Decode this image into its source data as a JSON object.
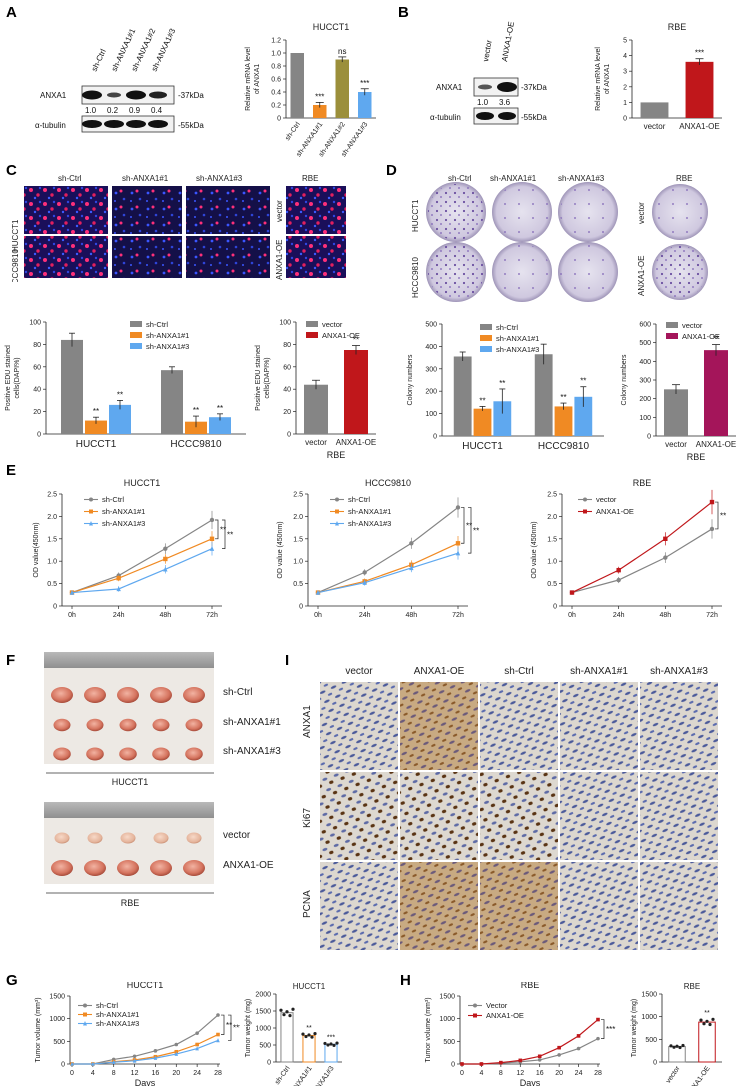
{
  "panels": {
    "A": "A",
    "B": "B",
    "C": "C",
    "D": "D",
    "E": "E",
    "F": "F",
    "G": "G",
    "H": "H",
    "I": "I"
  },
  "colors": {
    "gray": "#858585",
    "orange": "#f08a23",
    "blue": "#5fa8ef",
    "olive": "#9b8f3b",
    "red": "#c0171b",
    "magenta": "#a4155a",
    "darkgray": "#7c7c7c"
  },
  "panel_A": {
    "lanes": [
      "sh-Ctrl",
      "sh-ANXA1#1",
      "sh-ANXA1#2",
      "sh-ANXA1#3"
    ],
    "rows": [
      "ANXA1",
      "α-tubulin"
    ],
    "kda": [
      "-37kDa",
      "-55kDa"
    ],
    "quant": [
      "1.0",
      "0.2",
      "0.9",
      "0.4"
    ]
  },
  "panel_B": {
    "lanes": [
      "vector",
      "ANXA1-OE"
    ],
    "rows": [
      "ANXA1",
      "α-tubulin"
    ],
    "kda": [
      "-37kDa",
      "-55kDa"
    ],
    "quant": [
      "1.0",
      "3.6"
    ]
  },
  "panel_C": {
    "cols": [
      "sh-Ctrl",
      "sh-ANXA1#1",
      "sh-ANXA1#3"
    ],
    "rows": [
      "HUCCT1",
      "HCCC9810"
    ],
    "rbe_title": "RBE",
    "rbe_rows": [
      "vector",
      "ANXA1-OE"
    ]
  },
  "panel_D": {
    "cols": [
      "sh-Ctrl",
      "sh-ANXA1#1",
      "sh-ANXA1#3"
    ],
    "rows": [
      "HUCCT1",
      "HCCC9810"
    ],
    "rbe_title": "RBE",
    "rbe_rows": [
      "vector",
      "ANXA1-OE"
    ]
  },
  "panel_F": {
    "top_rows": [
      "sh-Ctrl",
      "sh-ANXA1#1",
      "sh-ANXA1#3"
    ],
    "top_caption": "HUCCT1",
    "bottom_rows": [
      "vector",
      "ANXA1-OE"
    ],
    "bottom_caption": "RBE"
  },
  "panel_I": {
    "cols": [
      "vector",
      "ANXA1-OE",
      "sh-Ctrl",
      "sh-ANXA1#1",
      "sh-ANXA1#3"
    ],
    "rows": [
      "ANXA1",
      "Ki67",
      "PCNA"
    ]
  },
  "chart_data": [
    {
      "id": "A_bar",
      "type": "bar",
      "title": "HUCCT1",
      "ylabel": "Relative mRNA level of ANXA1",
      "ylim": [
        0,
        1.2
      ],
      "yticks": [
        0,
        0.2,
        0.4,
        0.6,
        0.8,
        1.0,
        1.2
      ],
      "categories": [
        "sh-Ctrl",
        "sh-ANXA1#1",
        "sh-ANXA1#2",
        "sh-ANXA1#3"
      ],
      "values": [
        1.0,
        0.2,
        0.9,
        0.4
      ],
      "errors": [
        0,
        0.04,
        0.04,
        0.05
      ],
      "colors": [
        "#858585",
        "#f08a23",
        "#9b8f3b",
        "#5fa8ef"
      ],
      "sig": [
        "",
        "***",
        "ns",
        "***"
      ]
    },
    {
      "id": "B_bar",
      "type": "bar",
      "title": "RBE",
      "ylabel": "Relative mRNA level of ANXA1",
      "ylim": [
        0,
        5
      ],
      "yticks": [
        0,
        1,
        2,
        3,
        4,
        5
      ],
      "categories": [
        "vector",
        "ANXA1-OE"
      ],
      "values": [
        1.0,
        3.6
      ],
      "errors": [
        0,
        0.2
      ],
      "colors": [
        "#858585",
        "#c0171b"
      ],
      "sig": [
        "",
        "***"
      ]
    },
    {
      "id": "C_bar1",
      "type": "bar",
      "ylabel": "Positive EDU stained cells(DAPI%)",
      "ylim": [
        0,
        100
      ],
      "yticks": [
        0,
        20,
        40,
        60,
        80,
        100
      ],
      "categories": [
        "HUCCT1",
        "HCCC9810"
      ],
      "series": [
        {
          "name": "sh-Ctrl",
          "values": [
            84,
            57
          ],
          "errors": [
            6,
            3
          ],
          "color": "#858585",
          "sig": [
            "",
            ""
          ]
        },
        {
          "name": "sh-ANXA1#1",
          "values": [
            12,
            11
          ],
          "errors": [
            3,
            5
          ],
          "color": "#f08a23",
          "sig": [
            "**",
            "**"
          ]
        },
        {
          "name": "sh-ANXA1#3",
          "values": [
            26,
            15
          ],
          "errors": [
            4,
            3
          ],
          "color": "#5fa8ef",
          "sig": [
            "**",
            "**"
          ]
        }
      ]
    },
    {
      "id": "C_bar2",
      "type": "bar",
      "ylabel": "Positive EDU stained cells(DAPI%)",
      "xlabel": "RBE",
      "ylim": [
        0,
        100
      ],
      "yticks": [
        0,
        20,
        40,
        60,
        80,
        100
      ],
      "categories": [
        "vector",
        "ANXA1-OE"
      ],
      "values": [
        44,
        75
      ],
      "errors": [
        4,
        4
      ],
      "colors": [
        "#858585",
        "#c0171b"
      ],
      "sig": [
        "",
        "**"
      ],
      "legend": [
        "vector",
        "ANXA1-OE"
      ]
    },
    {
      "id": "D_bar1",
      "type": "bar",
      "ylabel": "Colony numbers",
      "ylim": [
        0,
        500
      ],
      "yticks": [
        0,
        100,
        200,
        300,
        400,
        500
      ],
      "categories": [
        "HUCCT1",
        "HCCC9810"
      ],
      "series": [
        {
          "name": "sh-Ctrl",
          "values": [
            355,
            365
          ],
          "errors": [
            20,
            45
          ],
          "color": "#858585",
          "sig": [
            "",
            ""
          ]
        },
        {
          "name": "sh-ANXA1#1",
          "values": [
            122,
            132
          ],
          "errors": [
            10,
            15
          ],
          "color": "#f08a23",
          "sig": [
            "**",
            "**"
          ]
        },
        {
          "name": "sh-ANXA1#3",
          "values": [
            155,
            175
          ],
          "errors": [
            55,
            45
          ],
          "color": "#5fa8ef",
          "sig": [
            "**",
            "**"
          ]
        }
      ]
    },
    {
      "id": "D_bar2",
      "type": "bar",
      "ylabel": "Colony numbers",
      "xlabel": "RBE",
      "ylim": [
        0,
        600
      ],
      "yticks": [
        0,
        100,
        200,
        300,
        400,
        500,
        600
      ],
      "categories": [
        "vector",
        "ANXA1-OE"
      ],
      "values": [
        250,
        460
      ],
      "errors": [
        25,
        30
      ],
      "colors": [
        "#858585",
        "#a4155a"
      ],
      "sig": [
        "",
        "**"
      ],
      "legend": [
        "vector",
        "ANXA1-OE"
      ]
    },
    {
      "id": "E1",
      "type": "line",
      "title": "HUCCT1",
      "ylabel": "OD value(450nm)",
      "ylim": [
        0,
        2.5
      ],
      "yticks": [
        0,
        0.5,
        1.0,
        1.5,
        2.0,
        2.5
      ],
      "x": [
        "0h",
        "24h",
        "48h",
        "72h"
      ],
      "series": [
        {
          "name": "sh-Ctrl",
          "values": [
            0.3,
            0.68,
            1.28,
            1.92
          ],
          "color": "#858585",
          "marker": "circle"
        },
        {
          "name": "sh-ANXA1#1",
          "values": [
            0.3,
            0.62,
            1.05,
            1.5
          ],
          "color": "#f08a23",
          "marker": "square"
        },
        {
          "name": "sh-ANXA1#3",
          "values": [
            0.3,
            0.38,
            0.82,
            1.28
          ],
          "color": "#5fa8ef",
          "marker": "triangle"
        }
      ],
      "sig": [
        "**",
        "**"
      ]
    },
    {
      "id": "E2",
      "type": "line",
      "title": "HCCC9810",
      "ylabel": "OD value (450nm)",
      "ylim": [
        0,
        2.5
      ],
      "yticks": [
        0,
        0.5,
        1.0,
        1.5,
        2.0,
        2.5
      ],
      "x": [
        "0h",
        "24h",
        "48h",
        "72h"
      ],
      "series": [
        {
          "name": "sh-Ctrl",
          "values": [
            0.3,
            0.75,
            1.4,
            2.2
          ],
          "color": "#858585",
          "marker": "circle"
        },
        {
          "name": "sh-ANXA1#1",
          "values": [
            0.3,
            0.55,
            0.92,
            1.4
          ],
          "color": "#f08a23",
          "marker": "square"
        },
        {
          "name": "sh-ANXA1#3",
          "values": [
            0.3,
            0.52,
            0.85,
            1.18
          ],
          "color": "#5fa8ef",
          "marker": "triangle"
        }
      ],
      "sig": [
        "**",
        "**"
      ]
    },
    {
      "id": "E3",
      "type": "line",
      "title": "RBE",
      "ylabel": "OD value (450nm)",
      "ylim": [
        0,
        2.5
      ],
      "yticks": [
        0,
        0.5,
        1.0,
        1.5,
        2.0,
        2.5
      ],
      "x": [
        "0h",
        "24h",
        "48h",
        "72h"
      ],
      "series": [
        {
          "name": "vector",
          "values": [
            0.3,
            0.58,
            1.08,
            1.72
          ],
          "color": "#858585",
          "marker": "circle"
        },
        {
          "name": "ANXA1-OE",
          "values": [
            0.3,
            0.8,
            1.5,
            2.32
          ],
          "color": "#c0171b",
          "marker": "square"
        }
      ],
      "sig": [
        "**"
      ]
    },
    {
      "id": "G1",
      "type": "line",
      "title": "HUCCT1",
      "ylabel": "Tumor volume (mm³)",
      "xlabel": "Days",
      "ylim": [
        0,
        1500
      ],
      "yticks": [
        0,
        500,
        1000,
        1500
      ],
      "x": [
        0,
        4,
        8,
        12,
        16,
        20,
        24,
        28
      ],
      "series": [
        {
          "name": "sh-Ctrl",
          "values": [
            0,
            0,
            100,
            170,
            290,
            430,
            680,
            1080
          ],
          "color": "#858585",
          "marker": "circle"
        },
        {
          "name": "sh-ANXA1#1",
          "values": [
            0,
            0,
            50,
            90,
            160,
            270,
            430,
            650
          ],
          "color": "#f08a23",
          "marker": "square"
        },
        {
          "name": "sh-ANXA1#3",
          "values": [
            0,
            0,
            40,
            70,
            130,
            220,
            340,
            520
          ],
          "color": "#5fa8ef",
          "marker": "triangle"
        }
      ],
      "sig": [
        "**",
        "***"
      ]
    },
    {
      "id": "G2",
      "type": "scatter",
      "title": "HUCCT1",
      "ylabel": "Tumor weight (mg)",
      "ylim": [
        0,
        2000
      ],
      "yticks": [
        0,
        500,
        1000,
        1500,
        2000
      ],
      "categories": [
        "sh-Ctrl",
        "sh-ANXA1#1",
        "sh-ANXA1#3"
      ],
      "values": [
        1450,
        780,
        520
      ],
      "colors": [
        "#858585",
        "#f08a23",
        "#5fa8ef"
      ],
      "sig": [
        "",
        "**",
        "***"
      ]
    },
    {
      "id": "H1",
      "type": "line",
      "title": "RBE",
      "ylabel": "Tumor volume (mm³)",
      "xlabel": "Days",
      "ylim": [
        0,
        1500
      ],
      "yticks": [
        0,
        500,
        1000,
        1500
      ],
      "x": [
        0,
        4,
        8,
        12,
        16,
        20,
        24,
        28
      ],
      "series": [
        {
          "name": "Vector",
          "values": [
            0,
            0,
            20,
            50,
            90,
            200,
            340,
            560
          ],
          "color": "#858585",
          "marker": "circle"
        },
        {
          "name": "ANXA1-OE",
          "values": [
            0,
            0,
            30,
            80,
            170,
            360,
            620,
            980
          ],
          "color": "#c0171b",
          "marker": "square"
        }
      ],
      "sig": [
        "***"
      ]
    },
    {
      "id": "H2",
      "type": "scatter",
      "title": "RBE",
      "ylabel": "Tumor weight (mg)",
      "ylim": [
        0,
        1500
      ],
      "yticks": [
        0,
        500,
        1000,
        1500
      ],
      "categories": [
        "vector",
        "ANXA1-OE"
      ],
      "values": [
        340,
        880
      ],
      "colors": [
        "#858585",
        "#c0171b"
      ],
      "sig": [
        "",
        "**"
      ]
    }
  ]
}
